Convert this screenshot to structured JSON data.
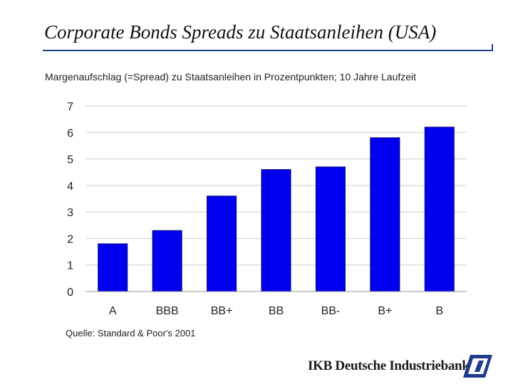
{
  "title": "Corporate Bonds Spreads zu Staatsanleihen (USA)",
  "subtitle": "Margenaufschlag (=Spread) zu Staatsanleihen in Prozentpunkten; 10 Jahre Laufzeit",
  "source": "Quelle: Standard & Poor's 2001",
  "brand": {
    "name": "IKB Deutsche Industriebank",
    "logo_icon": "ikb-logo-icon"
  },
  "colors": {
    "bar": "#0000ee",
    "grid": "#cccccc",
    "accent": "#1f3b8c"
  },
  "chart_data": {
    "type": "bar",
    "title": "Corporate Bonds Spreads zu Staatsanleihen (USA)",
    "xlabel": "",
    "ylabel": "",
    "categories": [
      "A",
      "BBB",
      "BB+",
      "BB",
      "BB-",
      "B+",
      "B"
    ],
    "values": [
      1.8,
      2.3,
      3.6,
      4.6,
      4.7,
      5.8,
      6.2
    ],
    "ylim": [
      0,
      7
    ],
    "yticks": [
      0,
      1,
      2,
      3,
      4,
      5,
      6,
      7
    ],
    "grid": true
  }
}
